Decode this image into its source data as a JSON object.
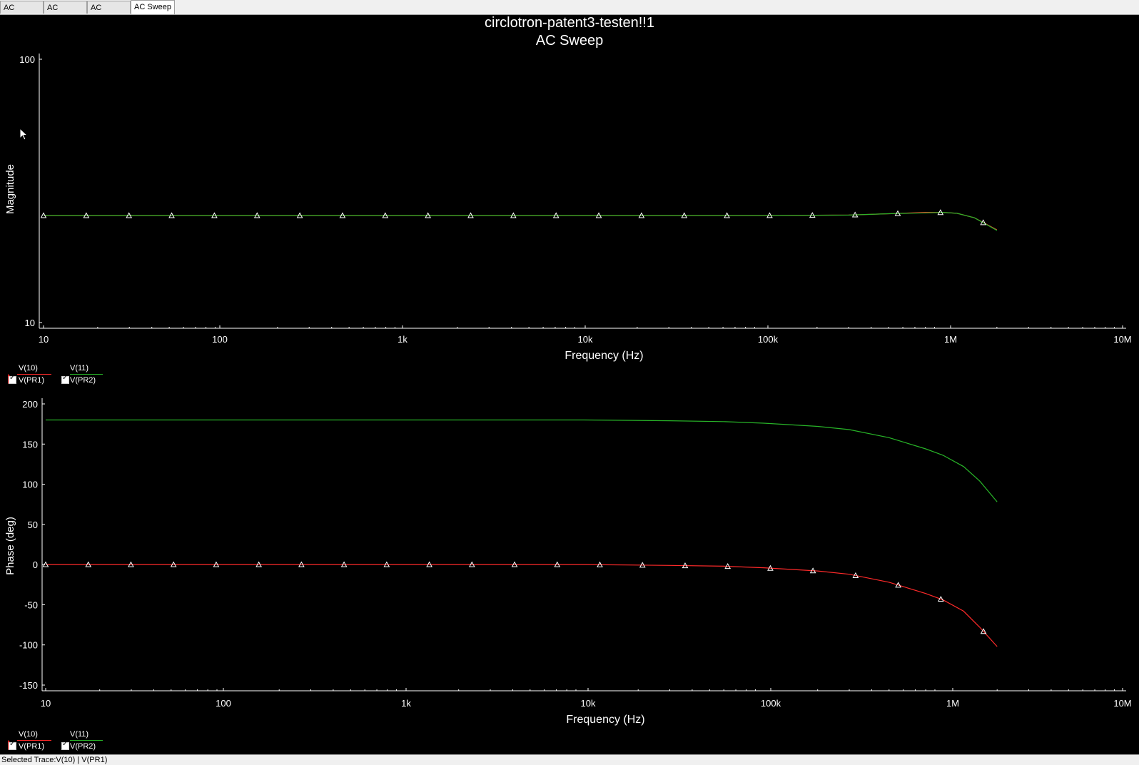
{
  "tabs": [
    {
      "label": "AC Sweep",
      "active": false
    },
    {
      "label": "AC Sweep",
      "active": false
    },
    {
      "label": "AC Sweep",
      "active": false
    },
    {
      "label": "AC Sweep",
      "active": true
    }
  ],
  "title": "circlotron-patent3-testen!!1",
  "subtitle": "AC Sweep",
  "colors": {
    "v10": "#ff2a2a",
    "v11": "#28b428",
    "axis": "#ffffff",
    "marker": "#ffffff"
  },
  "legend": [
    {
      "top": "V(10)",
      "bottom": "V(PR1)",
      "color": "#ff2a2a",
      "selected": true
    },
    {
      "top": "V(11)",
      "bottom": "V(PR2)",
      "color": "#28b428",
      "selected": false
    }
  ],
  "status": "Selected Trace:V(10) | V(PR1)",
  "chart_data": [
    {
      "type": "line",
      "title": "AC Sweep",
      "xlabel": "Frequency (Hz)",
      "ylabel": "Magnitude",
      "xscale": "log",
      "yscale": "log",
      "xlim": [
        10,
        10000000
      ],
      "ylim": [
        10,
        100
      ],
      "xticks": [
        "10",
        "100",
        "1k",
        "10k",
        "100k",
        "1M",
        "10M"
      ],
      "yticks": [
        "100",
        "10"
      ],
      "legend": "bottom-left",
      "series": [
        {
          "name": "V(10)",
          "color": "#ff2a2a",
          "markers": false,
          "x": [
            10,
            100,
            1000,
            10000,
            100000,
            300000,
            500000,
            800000,
            1000000,
            1200000,
            1500000,
            2000000
          ],
          "y": [
            25.5,
            25.5,
            25.5,
            25.5,
            25.5,
            25.6,
            25.9,
            26.2,
            26.2,
            26.0,
            25.0,
            22.5
          ]
        },
        {
          "name": "V(11)",
          "color": "#28b428",
          "markers": true,
          "x": [
            10,
            100,
            1000,
            10000,
            100000,
            300000,
            500000,
            800000,
            1000000,
            1200000,
            1500000,
            2000000
          ],
          "y": [
            25.5,
            25.5,
            25.5,
            25.5,
            25.5,
            25.6,
            25.9,
            26.1,
            26.2,
            26.0,
            25.0,
            22.4
          ]
        }
      ]
    },
    {
      "type": "line",
      "title": "",
      "xlabel": "Frequency (Hz)",
      "ylabel": "Phase (deg)",
      "xscale": "log",
      "xlim": [
        10,
        10000000
      ],
      "ylim": [
        -150,
        200
      ],
      "xticks": [
        "10",
        "100",
        "1k",
        "10k",
        "100k",
        "1M",
        "10M"
      ],
      "yticks": [
        200,
        150,
        100,
        50,
        0,
        -50,
        -100,
        -150
      ],
      "legend": "bottom-left",
      "series": [
        {
          "name": "V(10)",
          "color": "#ff2a2a",
          "markers": true,
          "x": [
            10,
            100,
            1000,
            10000,
            30000,
            60000,
            100000,
            200000,
            300000,
            500000,
            800000,
            1000000,
            1300000,
            1600000,
            2000000
          ],
          "y": [
            0,
            0,
            0,
            0,
            -1,
            -2,
            -4,
            -8,
            -12,
            -22,
            -36,
            -44,
            -58,
            -78,
            -102
          ]
        },
        {
          "name": "V(11)",
          "color": "#28b428",
          "markers": false,
          "x": [
            10,
            100,
            1000,
            10000,
            30000,
            60000,
            100000,
            200000,
            300000,
            500000,
            800000,
            1000000,
            1300000,
            1600000,
            2000000
          ],
          "y": [
            180,
            180,
            180,
            180,
            179,
            178,
            176,
            172,
            168,
            158,
            144,
            136,
            122,
            104,
            78
          ]
        }
      ]
    }
  ]
}
